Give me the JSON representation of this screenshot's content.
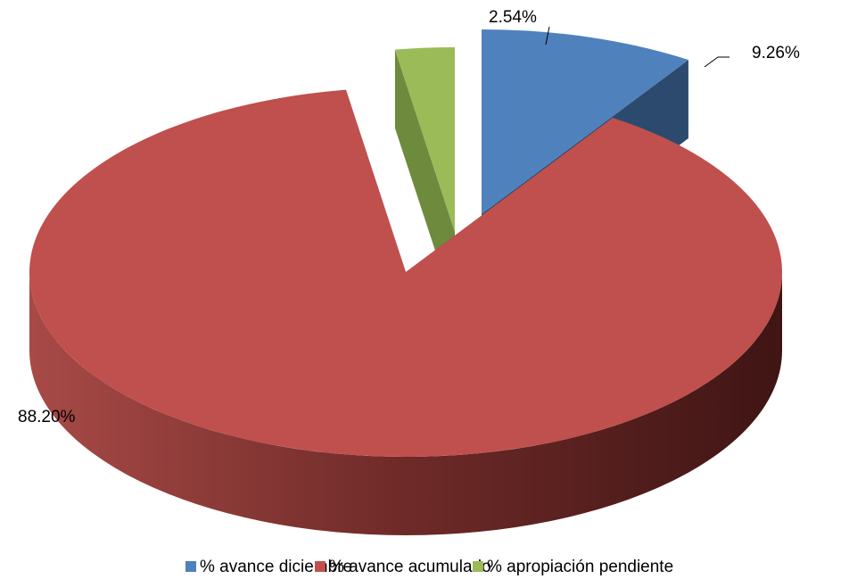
{
  "chart_data": {
    "type": "pie",
    "categories": [
      "% avance diciembre",
      "% avance acumulado",
      "% apropiación pendiente"
    ],
    "values": [
      9.26,
      88.2,
      2.54
    ],
    "value_labels": [
      "9.26%",
      "88.20%",
      "2.54%"
    ],
    "colors": [
      "#4f81bd",
      "#c0504d",
      "#9bbb59"
    ],
    "legend": "bottom",
    "style": "3d-exploded"
  }
}
